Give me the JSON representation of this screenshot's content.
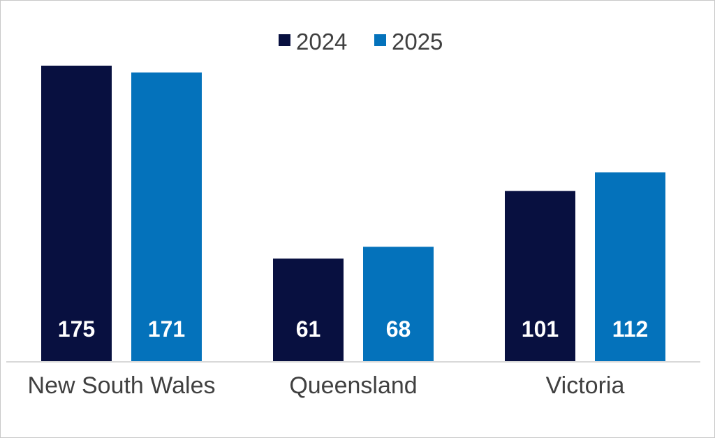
{
  "chart_data": {
    "type": "bar",
    "categories": [
      "New South Wales",
      "Queensland",
      "Victoria"
    ],
    "series": [
      {
        "name": "2024",
        "values": [
          175,
          61,
          101
        ],
        "color": "#081040"
      },
      {
        "name": "2025",
        "values": [
          171,
          68,
          112
        ],
        "color": "#0472BB"
      }
    ],
    "ylim": [
      0,
      175
    ],
    "show_data_labels": true,
    "data_label_position": "inside-base",
    "legend": "top-center",
    "grid": false,
    "baseline_color": "#D9D9D9"
  }
}
